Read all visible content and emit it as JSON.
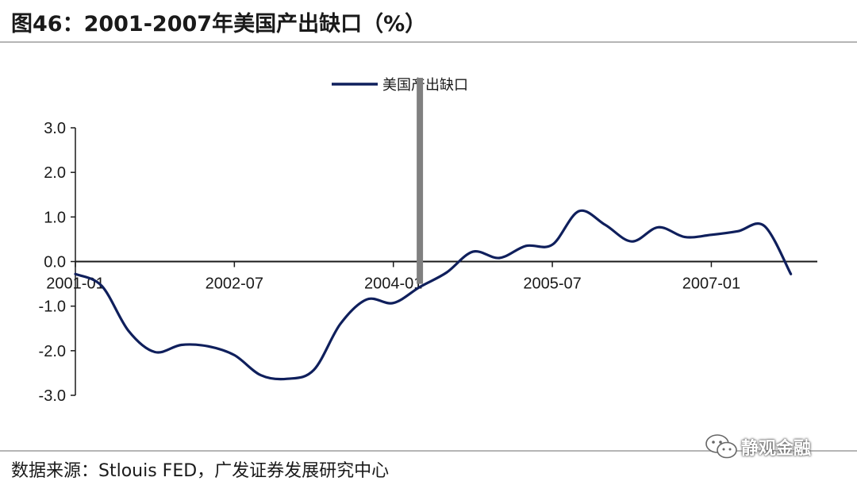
{
  "header": {
    "title": "图46：2001-2007年美国产出缺口（%）"
  },
  "footer": {
    "source": "数据来源：Stlouis FED，广发证券发展研究中心"
  },
  "watermark": {
    "text": "静观金融",
    "icon": "wechat-icon"
  },
  "colors": {
    "series": "#0f1f5c",
    "axis": "#1a1a1a",
    "marker": "#808080"
  },
  "chart_data": {
    "type": "line",
    "title": "",
    "xlabel": "",
    "ylabel": "",
    "ylim": [
      -3.0,
      3.0
    ],
    "y_ticks": [
      "3.0",
      "2.0",
      "1.0",
      "0.0",
      "-1.0",
      "-2.0",
      "-3.0"
    ],
    "x_tick_labels": [
      "2001-01",
      "2002-07",
      "2004-01",
      "2005-07",
      "2007-01"
    ],
    "x_range": [
      "2001-01",
      "2008-01"
    ],
    "grid": false,
    "legend_position": "top-center",
    "vertical_marker": "2004-04",
    "series": [
      {
        "name": "美国产出缺口",
        "points": [
          [
            "2001-01",
            -0.28
          ],
          [
            "2001-04",
            -0.55
          ],
          [
            "2001-07",
            -1.55
          ],
          [
            "2001-10",
            -2.03
          ],
          [
            "2002-01",
            -1.87
          ],
          [
            "2002-04",
            -1.9
          ],
          [
            "2002-07",
            -2.1
          ],
          [
            "2002-10",
            -2.55
          ],
          [
            "2003-01",
            -2.63
          ],
          [
            "2003-04",
            -2.43
          ],
          [
            "2003-07",
            -1.4
          ],
          [
            "2003-10",
            -0.85
          ],
          [
            "2004-01",
            -0.93
          ],
          [
            "2004-04",
            -0.57
          ],
          [
            "2004-07",
            -0.25
          ],
          [
            "2004-10",
            0.22
          ],
          [
            "2005-01",
            0.08
          ],
          [
            "2005-04",
            0.35
          ],
          [
            "2005-07",
            0.38
          ],
          [
            "2005-10",
            1.13
          ],
          [
            "2006-01",
            0.82
          ],
          [
            "2006-04",
            0.45
          ],
          [
            "2006-07",
            0.77
          ],
          [
            "2006-10",
            0.55
          ],
          [
            "2007-01",
            0.6
          ],
          [
            "2007-04",
            0.68
          ],
          [
            "2007-07",
            0.8
          ],
          [
            "2007-10",
            -0.28
          ]
        ]
      }
    ]
  }
}
